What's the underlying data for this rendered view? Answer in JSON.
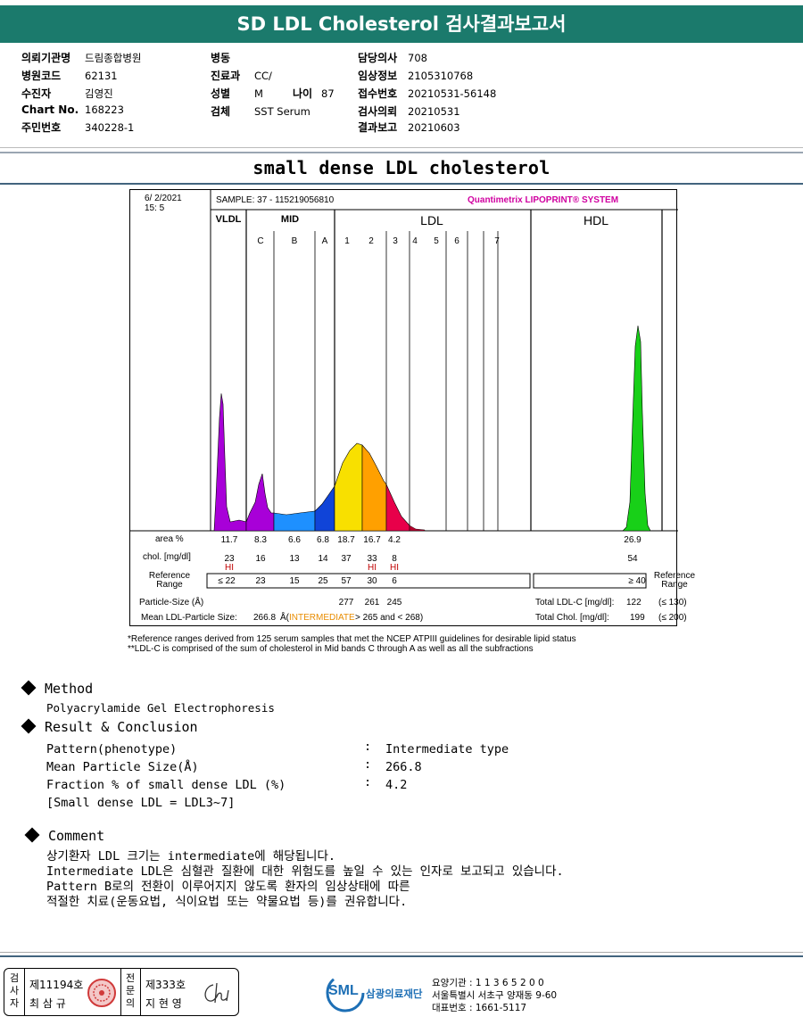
{
  "header": {
    "title": "SD LDL Cholesterol 검사결과보고서"
  },
  "patient": {
    "col1": [
      {
        "label": "의뢰기관명",
        "value": "드림종합병원"
      },
      {
        "label": "병원코드",
        "value": "62131"
      },
      {
        "label": "수진자",
        "value": "김영진"
      },
      {
        "label": "Chart No.",
        "value": "168223"
      },
      {
        "label": "주민번호",
        "value": "340228-1"
      }
    ],
    "col2": [
      {
        "label": "병동",
        "value": ""
      },
      {
        "label": "진료과",
        "value": "CC/"
      },
      {
        "label": "성별",
        "value": "M"
      },
      {
        "label": "검체",
        "value": "SST Serum"
      }
    ],
    "age": {
      "label": "나이",
      "value": "87"
    },
    "col3": [
      {
        "label": "담당의사",
        "value": "708"
      },
      {
        "label": "임상정보",
        "value": "2105310768"
      },
      {
        "label": "접수번호",
        "value": "20210531-56148"
      },
      {
        "label": "검사의뢰",
        "value": "20210531"
      },
      {
        "label": "결과보고",
        "value": "20210603"
      }
    ]
  },
  "report_title": "small dense LDL cholesterol",
  "chart_data": {
    "type": "area",
    "datetime": [
      "6/  2/2021",
      "15:  5"
    ],
    "sample": "SAMPLE:   37 - 115219056810",
    "brand": "Quantimetrix LIPOPRINT® SYSTEM",
    "groups": [
      "VLDL",
      "MID",
      "LDL",
      "HDL"
    ],
    "bands": [
      "C",
      "B",
      "A",
      "1",
      "2",
      "3",
      "4",
      "5",
      "6",
      "7"
    ],
    "row_labels": {
      "area": "area %",
      "chol": "chol. [mg/dl]",
      "ref": "Reference Range",
      "particle": "Particle-Size (Å)",
      "mean": "Mean LDL-Particle Size:",
      "ref_right": "Reference Range"
    },
    "columns": [
      "VLDL",
      "C",
      "B",
      "A",
      "1",
      "2",
      "3",
      "HDL"
    ],
    "area_pct": [
      "11.7",
      "8.3",
      "6.6",
      "6.8",
      "18.7",
      "16.7",
      "4.2",
      "26.9"
    ],
    "chol_mg_dl": [
      "23",
      "16",
      "13",
      "14",
      "37",
      "33",
      "8",
      "54"
    ],
    "hi_flags": [
      "HI",
      "",
      "",
      "",
      "",
      "HI",
      "HI",
      ""
    ],
    "reference": [
      "≤ 22",
      "23",
      "15",
      "25",
      "57",
      "30",
      "6",
      "≥  40"
    ],
    "particle_size": [
      "277",
      "261",
      "245"
    ],
    "mean_particle": {
      "value": "266.8",
      "unit": "Å(",
      "class": "INTERMEDIATE",
      "rule": "> 265 and < 268)"
    },
    "totals": [
      {
        "label": "Total LDL-C  [mg/dl]:",
        "value": "122",
        "ref": "(≤ 130)"
      },
      {
        "label": "Total Chol.  [mg/dl]:",
        "value": "199",
        "ref": "(≤ 200)"
      }
    ],
    "colors": {
      "vldl": "#a800d8",
      "mid": "#1e90ff",
      "ldl1": "#f8e000",
      "ldl2": "#ffa000",
      "ldl3": "#e8004a",
      "hdl": "#18d018",
      "brand": "#d000a0",
      "hi": "#c00000",
      "intermediate": "#e88c00"
    }
  },
  "footnotes": [
    "*Reference ranges derived from 125 serum samples that met the NCEP ATPIII guidelines for desirable lipid status",
    "**LDL-C is comprised of the sum of cholesterol in Mid bands C through A as well as all the subfractions"
  ],
  "method": {
    "title": "Method",
    "text": "Polyacrylamide Gel Electrophoresis"
  },
  "result": {
    "title": "Result & Conclusion",
    "rows": [
      {
        "label": "Pattern(phenotype)",
        "value": "Intermediate type"
      },
      {
        "label": "Mean Particle Size(Å)",
        "value": "266.8"
      },
      {
        "label": "Fraction % of small dense LDL (%)",
        "value": "4.2"
      }
    ],
    "note": "[Small dense LDL = LDL3~7]"
  },
  "comment": {
    "title": "Comment",
    "lines": [
      "상기환자 LDL 크기는 intermediate에 해당됩니다.",
      "Intermediate LDL은 심혈관 질환에 대한 위험도를 높일 수 있는 인자로 보고되고 있습니다.",
      "Pattern B로의 전환이 이루어지지 않도록 환자의 임상상태에 따른",
      "적절한 치료(운동요법, 식이요법 또는 약물요법 등)를 권유합니다."
    ]
  },
  "footer": {
    "inspector_label": [
      "검",
      "사",
      "자"
    ],
    "inspector_no": "제11194호",
    "inspector_name": "최 삼 규",
    "specialist_label": [
      "전",
      "문",
      "의"
    ],
    "specialist_no": "제333호",
    "specialist_name": "지 현 영",
    "sml_logo": "SML",
    "org_name": "삼광의료재단",
    "org_info": [
      "요양기관 : 1 1 3 6 5 2 0 0",
      "서울특별시 서초구 양재동 9-60",
      "대표번호 : 1661-5117"
    ]
  }
}
